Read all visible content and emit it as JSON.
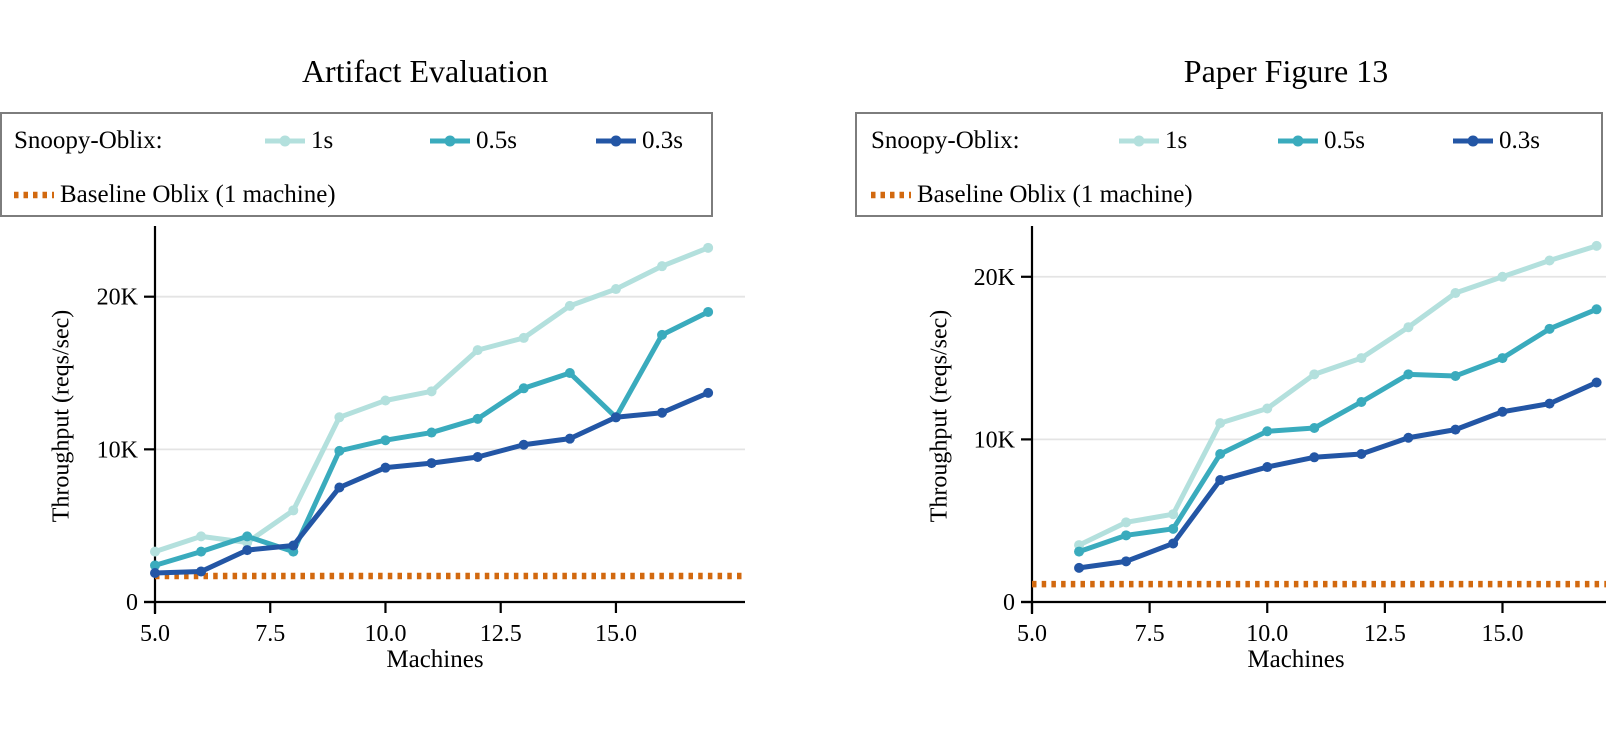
{
  "palette": {
    "background": "#ffffff",
    "axis": "#000000",
    "grid": "#e4e4e4",
    "legend_border": "#7d7d7d",
    "series_1s": "#b3e0dd",
    "series_05s": "#3aabbd",
    "series_03s": "#2356a5",
    "baseline": "#d2690f"
  },
  "chart_data": [
    {
      "type": "line",
      "title": "Artifact Evaluation",
      "xlabel": "Machines",
      "ylabel": "Throughput (reqs/sec)",
      "legend_group_label": "Snoopy-Oblix:",
      "x": [
        5,
        6,
        7,
        8,
        9,
        10,
        11,
        12,
        13,
        14,
        15,
        16,
        17
      ],
      "series": [
        {
          "name": "1s",
          "color": "#b3e0dd",
          "values": [
            3300,
            4300,
            3900,
            6000,
            12100,
            13200,
            13800,
            16500,
            17300,
            19400,
            20500,
            22000,
            23200
          ]
        },
        {
          "name": "0.5s",
          "color": "#3aabbd",
          "values": [
            2400,
            3300,
            4300,
            3300,
            9900,
            10600,
            11100,
            12000,
            14000,
            15000,
            12100,
            17500,
            19000
          ]
        },
        {
          "name": "0.3s",
          "color": "#2356a5",
          "values": [
            1900,
            2000,
            3400,
            3700,
            7500,
            8800,
            9100,
            9500,
            10300,
            10700,
            12100,
            12400,
            13700
          ]
        }
      ],
      "baseline": {
        "name": "Baseline Oblix (1 machine)",
        "color": "#d2690f",
        "value": 1700
      },
      "xlim": [
        5,
        17.8
      ],
      "ylim": [
        0,
        24500
      ],
      "x_tick_values": [
        5,
        7.5,
        10,
        12.5,
        15
      ],
      "x_tick_labels": [
        "5.0",
        "7.5",
        "10.0",
        "12.5",
        "15.0"
      ],
      "y_tick_values": [
        0,
        10000,
        20000
      ],
      "y_tick_labels": [
        "0",
        "10K",
        "20K"
      ],
      "grid": "horizontal"
    },
    {
      "type": "line",
      "title": "Paper Figure 13",
      "xlabel": "Machines",
      "ylabel": "Throughput (reqs/sec)",
      "legend_group_label": "Snoopy-Oblix:",
      "x": [
        6,
        7,
        8,
        9,
        10,
        11,
        12,
        13,
        14,
        15,
        16,
        17
      ],
      "series": [
        {
          "name": "1s",
          "color": "#b3e0dd",
          "values": [
            3500,
            4900,
            5400,
            11000,
            11900,
            14000,
            15000,
            16900,
            19000,
            20000,
            21000,
            21900
          ]
        },
        {
          "name": "0.5s",
          "color": "#3aabbd",
          "values": [
            3100,
            4100,
            4500,
            9100,
            10500,
            10700,
            12300,
            14000,
            13900,
            15000,
            16800,
            18000
          ]
        },
        {
          "name": "0.3s",
          "color": "#2356a5",
          "values": [
            2100,
            2500,
            3600,
            7500,
            8300,
            8900,
            9100,
            10100,
            10600,
            11700,
            12200,
            13500
          ]
        }
      ],
      "baseline": {
        "name": "Baseline Oblix (1 machine)",
        "color": "#d2690f",
        "value": 1100
      },
      "xlim": [
        5,
        17.2
      ],
      "ylim": [
        0,
        23000
      ],
      "x_tick_values": [
        5,
        7.5,
        10,
        12.5,
        15
      ],
      "x_tick_labels": [
        "5.0",
        "7.5",
        "10.0",
        "12.5",
        "15.0"
      ],
      "y_tick_values": [
        0,
        10000,
        20000
      ],
      "y_tick_labels": [
        "0",
        "10K",
        "20K"
      ],
      "grid": "horizontal"
    }
  ]
}
